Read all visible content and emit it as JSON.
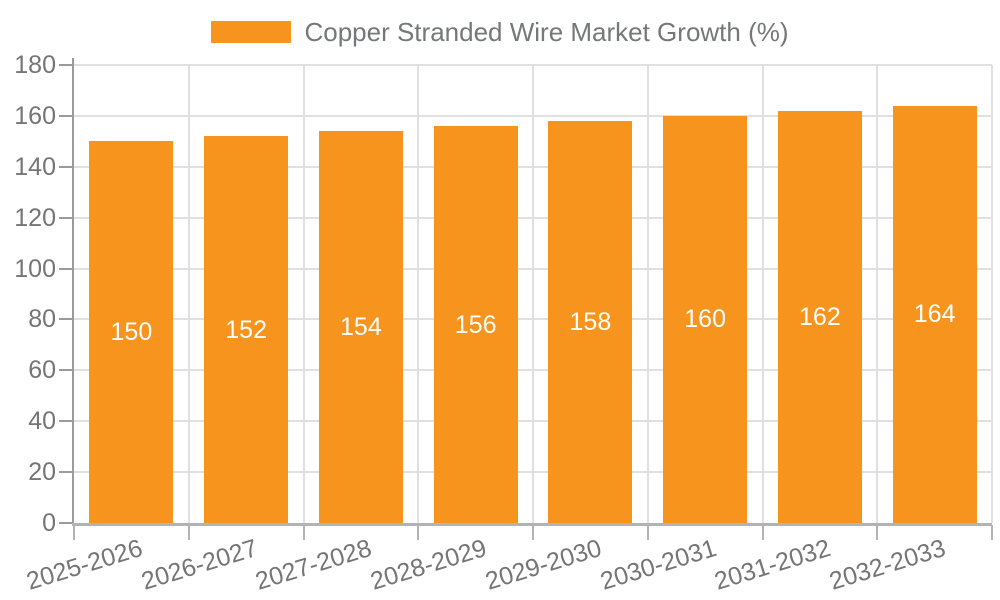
{
  "legend": {
    "label": "Copper Stranded Wire Market Growth (%)"
  },
  "chart_data": {
    "type": "bar",
    "title": "Copper Stranded Wire Market Growth (%)",
    "series_name": "Copper Stranded Wire Market Growth (%)",
    "categories": [
      "2025-2026",
      "2026-2027",
      "2027-2028",
      "2028-2029",
      "2029-2030",
      "2030-2031",
      "2031-2032",
      "2032-2033"
    ],
    "values": [
      150,
      152,
      154,
      156,
      158,
      160,
      162,
      164
    ],
    "xlabel": "",
    "ylabel": "",
    "ylim": [
      0,
      180
    ],
    "ytick_step": 20,
    "yticks": [
      0,
      20,
      40,
      60,
      80,
      100,
      120,
      140,
      160,
      180
    ],
    "grid": true,
    "legend_position": "top-center",
    "value_label_position": "inside-center",
    "x_label_rotation_deg": -17,
    "colors": {
      "bar": "#f7941e",
      "value_label": "#ffffff",
      "y_axis_line": "#9b9b9b",
      "x_axis_line": "#b3b3b3",
      "grid_line": "#e0e0e0",
      "tick_label": "#757575",
      "legend_text": "#76777a",
      "background": "#ffffff"
    }
  }
}
